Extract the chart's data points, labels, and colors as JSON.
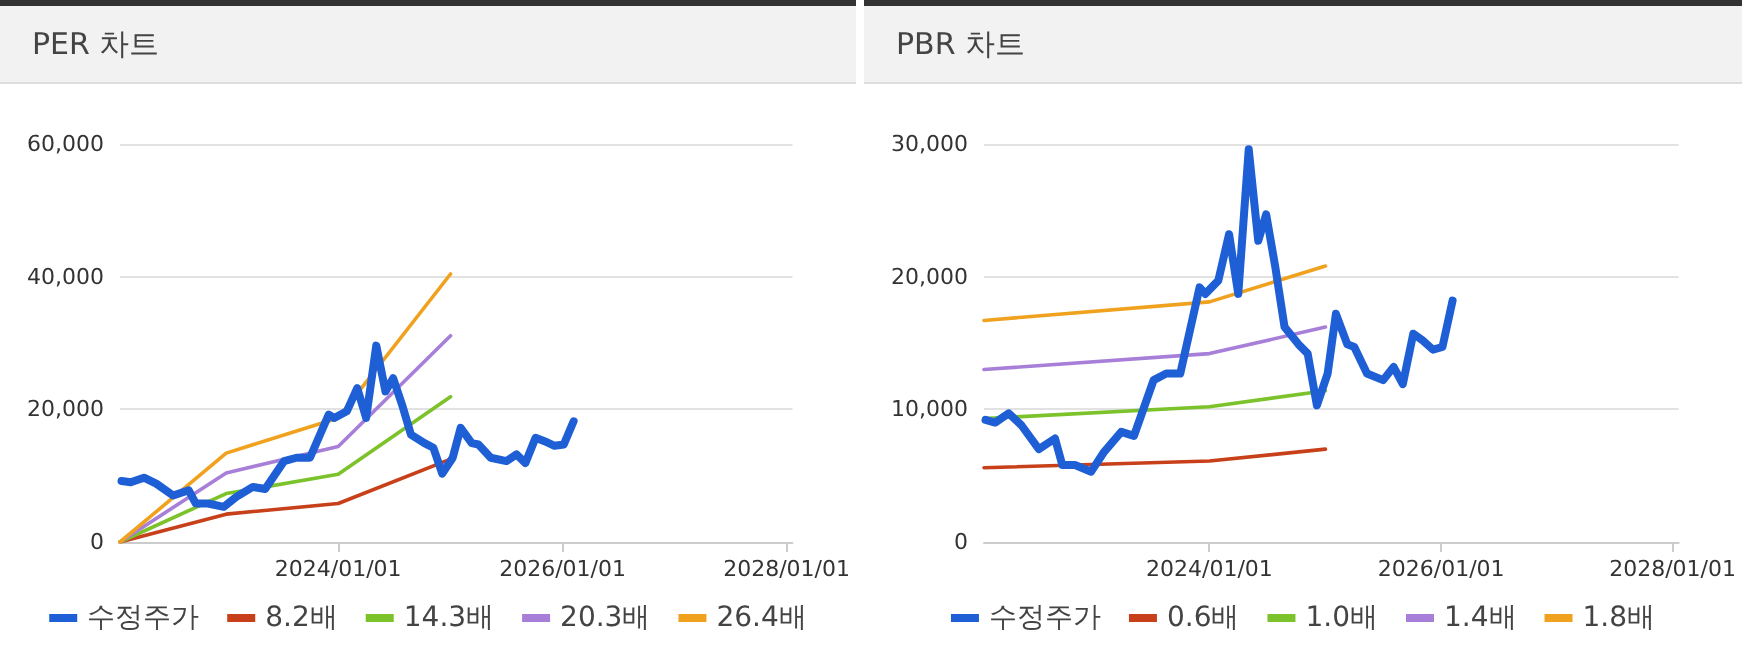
{
  "chart_data": [
    {
      "type": "line",
      "title": "PER 차트",
      "xlim": [
        "2022-01-20",
        "2028-01-20"
      ],
      "xticks": [
        {
          "value": "2024-01-01",
          "label": "2024/01/01"
        },
        {
          "value": "2026-01-01",
          "label": "2026/01/01"
        },
        {
          "value": "2028-01-01",
          "label": "2028/01/01"
        }
      ],
      "ylim": [
        0,
        60000
      ],
      "yticks": [
        {
          "value": 0,
          "label": "0"
        },
        {
          "value": 20000,
          "label": "20,000"
        },
        {
          "value": 40000,
          "label": "40,000"
        },
        {
          "value": 60000,
          "label": "60,000"
        }
      ],
      "grid": "y",
      "legend": "bottom",
      "marker": "none",
      "line_style": "solid",
      "series": [
        {
          "name": "수정주가",
          "color": "#1f5fd6",
          "x": [
            "2022-01-25",
            "2022-02-24",
            "2022-04-08",
            "2022-05-18",
            "2022-07-12",
            "2022-09-01",
            "2022-09-24",
            "2022-11-03",
            "2022-12-24",
            "2023-02-03",
            "2023-03-29",
            "2023-05-08",
            "2023-07-09",
            "2023-08-18",
            "2023-10-01",
            "2023-12-01",
            "2023-12-19",
            "2024-01-29",
            "2024-03-03",
            "2024-04-01",
            "2024-05-04",
            "2024-06-03",
            "2024-06-28",
            "2024-07-27",
            "2024-08-25",
            "2024-10-08",
            "2024-11-06",
            "2024-12-05",
            "2025-01-08",
            "2025-02-03",
            "2025-03-11",
            "2025-04-02",
            "2025-05-12",
            "2025-07-02",
            "2025-08-04",
            "2025-09-02",
            "2025-10-05",
            "2025-11-03",
            "2025-12-06",
            "2026-01-05",
            "2026-02-06"
          ],
          "values": [
            9200,
            9000,
            9700,
            8800,
            7000,
            7800,
            5800,
            5800,
            5300,
            6800,
            8300,
            8000,
            12200,
            12700,
            12700,
            19200,
            18700,
            19700,
            23200,
            18700,
            29600,
            22700,
            24700,
            20700,
            16200,
            14900,
            14200,
            10300,
            12700,
            17200,
            14900,
            14700,
            12700,
            12200,
            13200,
            11900,
            15700,
            15200,
            14500,
            14700,
            18200
          ]
        },
        {
          "name": "8.2배",
          "color": "#c8401a",
          "x": [
            "2022-01-20",
            "2023-01-01",
            "2024-01-01",
            "2025-01-01"
          ],
          "values": [
            0,
            4200,
            5800,
            12500
          ]
        },
        {
          "name": "14.3배",
          "color": "#7cc22a",
          "x": [
            "2022-01-20",
            "2023-01-01",
            "2024-01-01",
            "2025-01-01"
          ],
          "values": [
            0,
            7300,
            10200,
            21900
          ]
        },
        {
          "name": "20.3배",
          "color": "#a77fd9",
          "x": [
            "2022-01-20",
            "2023-01-01",
            "2024-01-01",
            "2025-01-01"
          ],
          "values": [
            0,
            10400,
            14400,
            31100
          ]
        },
        {
          "name": "26.4배",
          "color": "#f0a21f",
          "x": [
            "2022-01-20",
            "2023-01-01",
            "2024-01-01",
            "2025-01-01"
          ],
          "values": [
            0,
            13400,
            18700,
            40400
          ]
        }
      ]
    },
    {
      "type": "line",
      "title": "PBR 차트",
      "xlim": [
        "2022-01-20",
        "2028-01-20"
      ],
      "xticks": [
        {
          "value": "2024-01-01",
          "label": "2024/01/01"
        },
        {
          "value": "2026-01-01",
          "label": "2026/01/01"
        },
        {
          "value": "2028-01-01",
          "label": "2028/01/01"
        }
      ],
      "ylim": [
        0,
        30000
      ],
      "yticks": [
        {
          "value": 0,
          "label": "0"
        },
        {
          "value": 10000,
          "label": "10,000"
        },
        {
          "value": 20000,
          "label": "20,000"
        },
        {
          "value": 30000,
          "label": "30,000"
        }
      ],
      "grid": "y",
      "legend": "bottom",
      "marker": "none",
      "line_style": "solid",
      "series": [
        {
          "name": "수정주가",
          "color": "#1f5fd6",
          "x": [
            "2022-01-25",
            "2022-02-24",
            "2022-04-08",
            "2022-05-18",
            "2022-07-12",
            "2022-09-01",
            "2022-09-24",
            "2022-11-03",
            "2022-12-24",
            "2023-02-03",
            "2023-03-29",
            "2023-05-08",
            "2023-07-09",
            "2023-08-18",
            "2023-10-01",
            "2023-12-01",
            "2023-12-19",
            "2024-01-29",
            "2024-03-03",
            "2024-04-01",
            "2024-05-04",
            "2024-06-03",
            "2024-06-28",
            "2024-07-27",
            "2024-08-25",
            "2024-10-08",
            "2024-11-06",
            "2024-12-05",
            "2025-01-08",
            "2025-02-03",
            "2025-03-11",
            "2025-04-02",
            "2025-05-12",
            "2025-07-02",
            "2025-08-04",
            "2025-09-02",
            "2025-10-05",
            "2025-11-03",
            "2025-12-06",
            "2026-01-05",
            "2026-02-06"
          ],
          "values": [
            9200,
            9000,
            9700,
            8800,
            7000,
            7800,
            5800,
            5800,
            5300,
            6800,
            8300,
            8000,
            12200,
            12700,
            12700,
            19200,
            18700,
            19700,
            23200,
            18700,
            29600,
            22700,
            24700,
            20700,
            16200,
            14900,
            14200,
            10300,
            12700,
            17200,
            14900,
            14700,
            12700,
            12200,
            13200,
            11900,
            15700,
            15200,
            14500,
            14700,
            18200
          ]
        },
        {
          "name": "0.6배",
          "color": "#c8401a",
          "x": [
            "2022-01-20",
            "2024-01-01",
            "2025-01-01"
          ],
          "values": [
            5600,
            6100,
            7000
          ]
        },
        {
          "name": "1.0배",
          "color": "#7cc22a",
          "x": [
            "2022-01-20",
            "2024-01-01",
            "2025-01-01"
          ],
          "values": [
            9300,
            10200,
            11400
          ]
        },
        {
          "name": "1.4배",
          "color": "#a77fd9",
          "x": [
            "2022-01-20",
            "2024-01-01",
            "2025-01-01"
          ],
          "values": [
            13000,
            14200,
            16200
          ]
        },
        {
          "name": "1.8배",
          "color": "#f0a21f",
          "x": [
            "2022-01-20",
            "2024-01-01",
            "2025-01-01"
          ],
          "values": [
            16700,
            18100,
            20800
          ]
        }
      ]
    }
  ]
}
